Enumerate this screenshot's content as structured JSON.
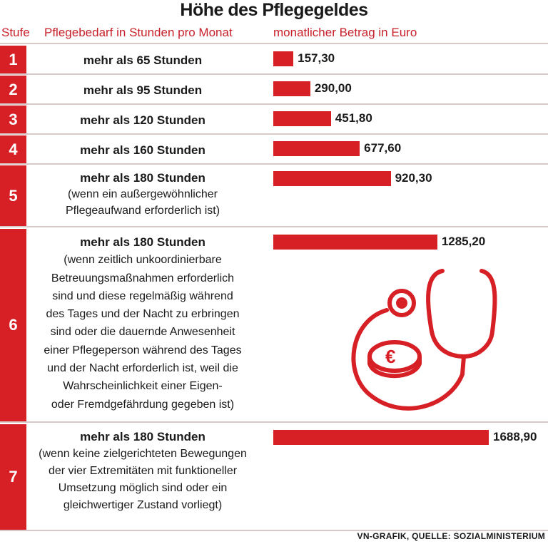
{
  "title": "Höhe des Pflegegeldes",
  "headers": {
    "stufe": "Stufe",
    "need": "Pflegebedarf in Stunden pro Monat",
    "amount": "monatlicher Betrag in Euro"
  },
  "footer": "VN-GRAFIK, QUELLE: SOZIALMINISTERIUM",
  "colors": {
    "accent": "#d71f26"
  },
  "icon": "stethoscope-euro-coin-icon",
  "chart_data": {
    "type": "bar",
    "title": "Höhe des Pflegegeldes",
    "categories": [
      "1",
      "2",
      "3",
      "4",
      "5",
      "6",
      "7"
    ],
    "values": [
      157.3,
      290.0,
      451.8,
      677.6,
      920.3,
      1285.2,
      1688.9
    ],
    "labels": [
      "157,30",
      "290,00",
      "451,80",
      "677,60",
      "920,30",
      "1285,20",
      "1688,90"
    ],
    "rows": [
      {
        "stufe": "1",
        "head": "mehr als 65 Stunden",
        "lines": []
      },
      {
        "stufe": "2",
        "head": "mehr als 95 Stunden",
        "lines": []
      },
      {
        "stufe": "3",
        "head": "mehr als 120 Stunden",
        "lines": []
      },
      {
        "stufe": "4",
        "head": "mehr als 160 Stunden",
        "lines": []
      },
      {
        "stufe": "5",
        "head": "mehr als 180 Stunden",
        "lines": [
          "(wenn ein außergewöhnlicher",
          "Pflegeaufwand erforderlich ist)"
        ]
      },
      {
        "stufe": "6",
        "head": "mehr als 180 Stunden",
        "lines": [
          "(wenn zeitlich unkoordinierbare",
          "Betreuungsmaßnahmen erforderlich",
          "sind und diese regelmäßig während",
          "des Tages und der Nacht zu erbringen",
          "sind oder die dauernde Anwesenheit",
          "einer Pflegeperson während des Tages",
          "und der Nacht erforderlich ist, weil die",
          "Wahrscheinlichkeit einer Eigen-",
          "oder Fremdgefährdung gegeben ist)"
        ]
      },
      {
        "stufe": "7",
        "head": "mehr als 180 Stunden",
        "lines": [
          "(wenn keine zielgerichteten Bewegungen",
          "der vier Extremitäten mit funktioneller",
          "Umsetzung möglich sind oder ein",
          "gleichwertiger Zustand vorliegt)"
        ]
      }
    ]
  }
}
